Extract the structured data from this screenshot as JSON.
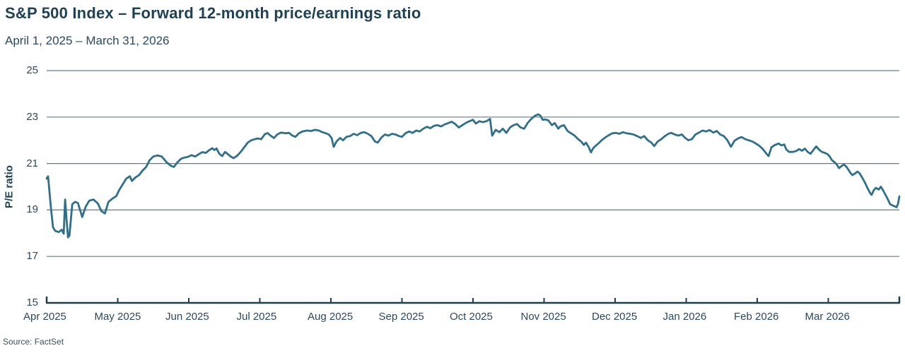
{
  "header": {
    "title": "S&P 500 Index – Forward 12-month price/earnings ratio",
    "subtitle": "April 1, 2025 – March 31, 2026"
  },
  "source": "Source: FactSet",
  "chart_data": {
    "type": "line",
    "title": "S&P 500 Index – Forward 12-month price/earnings ratio",
    "subtitle": "April 1, 2025 – March 31, 2026",
    "xlabel": "",
    "ylabel": "P/E ratio",
    "ylim": [
      15,
      25
    ],
    "yticks": [
      15,
      17,
      19,
      21,
      23,
      25
    ],
    "xticks": [
      "Apr 2025",
      "May 2025",
      "Jun 2025",
      "Jul 2025",
      "Aug 2025",
      "Sep 2025",
      "Oct 2025",
      "Nov 2025",
      "Dec 2025",
      "Jan 2026",
      "Feb 2026",
      "Mar 2026"
    ],
    "x_domain_months": 12,
    "grid": "horizontal",
    "legend": "none",
    "line_color": "#2e6f8e",
    "grid_color": "#5d7c8f",
    "axis_color": "#1e3e54",
    "series": [
      {
        "name": "Forward 12-month P/E ratio",
        "x_unit": "months since Apr 1 2025",
        "points": [
          [
            0.0,
            20.35
          ],
          [
            0.02,
            20.45
          ],
          [
            0.06,
            19.1
          ],
          [
            0.09,
            18.25
          ],
          [
            0.12,
            18.1
          ],
          [
            0.17,
            18.05
          ],
          [
            0.21,
            18.15
          ],
          [
            0.24,
            17.98
          ],
          [
            0.26,
            19.45
          ],
          [
            0.28,
            18.6
          ],
          [
            0.3,
            17.82
          ],
          [
            0.32,
            17.9
          ],
          [
            0.36,
            19.25
          ],
          [
            0.4,
            19.35
          ],
          [
            0.44,
            19.3
          ],
          [
            0.46,
            19.1
          ],
          [
            0.5,
            18.7
          ],
          [
            0.55,
            19.15
          ],
          [
            0.6,
            19.4
          ],
          [
            0.66,
            19.45
          ],
          [
            0.72,
            19.28
          ],
          [
            0.77,
            18.95
          ],
          [
            0.82,
            18.85
          ],
          [
            0.87,
            19.35
          ],
          [
            0.93,
            19.5
          ],
          [
            0.98,
            19.6
          ],
          [
            1.02,
            19.85
          ],
          [
            1.07,
            20.1
          ],
          [
            1.12,
            20.35
          ],
          [
            1.17,
            20.45
          ],
          [
            1.2,
            20.25
          ],
          [
            1.25,
            20.4
          ],
          [
            1.3,
            20.5
          ],
          [
            1.35,
            20.7
          ],
          [
            1.4,
            20.85
          ],
          [
            1.45,
            21.15
          ],
          [
            1.5,
            21.3
          ],
          [
            1.56,
            21.35
          ],
          [
            1.62,
            21.3
          ],
          [
            1.69,
            21.05
          ],
          [
            1.75,
            20.9
          ],
          [
            1.79,
            20.85
          ],
          [
            1.84,
            21.05
          ],
          [
            1.89,
            21.2
          ],
          [
            1.93,
            21.25
          ],
          [
            1.98,
            21.28
          ],
          [
            2.04,
            21.36
          ],
          [
            2.09,
            21.3
          ],
          [
            2.14,
            21.4
          ],
          [
            2.19,
            21.49
          ],
          [
            2.24,
            21.46
          ],
          [
            2.29,
            21.58
          ],
          [
            2.33,
            21.66
          ],
          [
            2.36,
            21.58
          ],
          [
            2.39,
            21.65
          ],
          [
            2.43,
            21.42
          ],
          [
            2.47,
            21.32
          ],
          [
            2.51,
            21.5
          ],
          [
            2.55,
            21.4
          ],
          [
            2.59,
            21.3
          ],
          [
            2.63,
            21.23
          ],
          [
            2.68,
            21.33
          ],
          [
            2.73,
            21.5
          ],
          [
            2.78,
            21.7
          ],
          [
            2.83,
            21.9
          ],
          [
            2.88,
            22.0
          ],
          [
            2.93,
            22.05
          ],
          [
            2.97,
            22.08
          ],
          [
            3.02,
            22.05
          ],
          [
            3.07,
            22.26
          ],
          [
            3.11,
            22.31
          ],
          [
            3.15,
            22.2
          ],
          [
            3.2,
            22.1
          ],
          [
            3.25,
            22.26
          ],
          [
            3.3,
            22.33
          ],
          [
            3.36,
            22.3
          ],
          [
            3.41,
            22.32
          ],
          [
            3.46,
            22.2
          ],
          [
            3.5,
            22.15
          ],
          [
            3.55,
            22.3
          ],
          [
            3.6,
            22.38
          ],
          [
            3.66,
            22.42
          ],
          [
            3.72,
            22.4
          ],
          [
            3.78,
            22.45
          ],
          [
            3.83,
            22.42
          ],
          [
            3.88,
            22.35
          ],
          [
            3.93,
            22.3
          ],
          [
            3.97,
            22.25
          ],
          [
            4.01,
            22.1
          ],
          [
            4.04,
            21.72
          ],
          [
            4.08,
            21.95
          ],
          [
            4.13,
            22.1
          ],
          [
            4.17,
            22.0
          ],
          [
            4.22,
            22.15
          ],
          [
            4.27,
            22.18
          ],
          [
            4.32,
            22.28
          ],
          [
            4.37,
            22.22
          ],
          [
            4.42,
            22.32
          ],
          [
            4.47,
            22.35
          ],
          [
            4.52,
            22.28
          ],
          [
            4.57,
            22.18
          ],
          [
            4.62,
            21.95
          ],
          [
            4.66,
            21.9
          ],
          [
            4.71,
            22.12
          ],
          [
            4.76,
            22.25
          ],
          [
            4.81,
            22.2
          ],
          [
            4.86,
            22.28
          ],
          [
            4.91,
            22.25
          ],
          [
            4.96,
            22.18
          ],
          [
            5.0,
            22.15
          ],
          [
            5.05,
            22.3
          ],
          [
            5.1,
            22.38
          ],
          [
            5.15,
            22.32
          ],
          [
            5.2,
            22.42
          ],
          [
            5.25,
            22.38
          ],
          [
            5.3,
            22.5
          ],
          [
            5.35,
            22.58
          ],
          [
            5.4,
            22.52
          ],
          [
            5.45,
            22.62
          ],
          [
            5.5,
            22.65
          ],
          [
            5.55,
            22.6
          ],
          [
            5.6,
            22.68
          ],
          [
            5.65,
            22.74
          ],
          [
            5.7,
            22.8
          ],
          [
            5.75,
            22.7
          ],
          [
            5.8,
            22.55
          ],
          [
            5.85,
            22.65
          ],
          [
            5.9,
            22.75
          ],
          [
            5.95,
            22.82
          ],
          [
            6.0,
            22.88
          ],
          [
            6.04,
            22.72
          ],
          [
            6.09,
            22.82
          ],
          [
            6.14,
            22.78
          ],
          [
            6.19,
            22.82
          ],
          [
            6.24,
            22.92
          ],
          [
            6.27,
            22.2
          ],
          [
            6.32,
            22.45
          ],
          [
            6.37,
            22.35
          ],
          [
            6.42,
            22.5
          ],
          [
            6.47,
            22.32
          ],
          [
            6.52,
            22.55
          ],
          [
            6.57,
            22.65
          ],
          [
            6.62,
            22.7
          ],
          [
            6.67,
            22.55
          ],
          [
            6.72,
            22.5
          ],
          [
            6.77,
            22.75
          ],
          [
            6.82,
            22.92
          ],
          [
            6.87,
            23.05
          ],
          [
            6.92,
            23.12
          ],
          [
            6.95,
            23.05
          ],
          [
            6.98,
            22.88
          ],
          [
            7.01,
            22.9
          ],
          [
            7.06,
            22.86
          ],
          [
            7.11,
            22.65
          ],
          [
            7.15,
            22.74
          ],
          [
            7.2,
            22.5
          ],
          [
            7.23,
            22.6
          ],
          [
            7.28,
            22.65
          ],
          [
            7.33,
            22.4
          ],
          [
            7.38,
            22.3
          ],
          [
            7.43,
            22.2
          ],
          [
            7.48,
            22.05
          ],
          [
            7.52,
            21.95
          ],
          [
            7.56,
            21.8
          ],
          [
            7.59,
            21.9
          ],
          [
            7.63,
            21.7
          ],
          [
            7.66,
            21.48
          ],
          [
            7.69,
            21.65
          ],
          [
            7.72,
            21.75
          ],
          [
            7.76,
            21.85
          ],
          [
            7.81,
            22.0
          ],
          [
            7.86,
            22.12
          ],
          [
            7.91,
            22.22
          ],
          [
            7.96,
            22.3
          ],
          [
            8.01,
            22.32
          ],
          [
            8.06,
            22.28
          ],
          [
            8.11,
            22.35
          ],
          [
            8.16,
            22.3
          ],
          [
            8.21,
            22.28
          ],
          [
            8.26,
            22.25
          ],
          [
            8.31,
            22.18
          ],
          [
            8.36,
            22.1
          ],
          [
            8.41,
            22.18
          ],
          [
            8.46,
            22.0
          ],
          [
            8.51,
            21.9
          ],
          [
            8.55,
            21.75
          ],
          [
            8.6,
            21.95
          ],
          [
            8.65,
            22.05
          ],
          [
            8.7,
            22.18
          ],
          [
            8.75,
            22.28
          ],
          [
            8.79,
            22.32
          ],
          [
            8.84,
            22.25
          ],
          [
            8.89,
            22.2
          ],
          [
            8.94,
            22.25
          ],
          [
            8.98,
            22.12
          ],
          [
            9.03,
            22.0
          ],
          [
            9.08,
            22.05
          ],
          [
            9.13,
            22.25
          ],
          [
            9.18,
            22.33
          ],
          [
            9.23,
            22.42
          ],
          [
            9.28,
            22.38
          ],
          [
            9.33,
            22.44
          ],
          [
            9.38,
            22.33
          ],
          [
            9.43,
            22.4
          ],
          [
            9.48,
            22.25
          ],
          [
            9.53,
            22.18
          ],
          [
            9.58,
            22.0
          ],
          [
            9.63,
            21.72
          ],
          [
            9.68,
            21.98
          ],
          [
            9.73,
            22.08
          ],
          [
            9.78,
            22.14
          ],
          [
            9.83,
            22.05
          ],
          [
            9.88,
            22.0
          ],
          [
            9.93,
            21.95
          ],
          [
            9.98,
            21.86
          ],
          [
            10.03,
            21.76
          ],
          [
            10.08,
            21.62
          ],
          [
            10.13,
            21.42
          ],
          [
            10.16,
            21.32
          ],
          [
            10.2,
            21.7
          ],
          [
            10.25,
            21.8
          ],
          [
            10.3,
            21.86
          ],
          [
            10.34,
            21.78
          ],
          [
            10.38,
            21.82
          ],
          [
            10.41,
            21.6
          ],
          [
            10.45,
            21.5
          ],
          [
            10.5,
            21.5
          ],
          [
            10.55,
            21.54
          ],
          [
            10.59,
            21.62
          ],
          [
            10.63,
            21.55
          ],
          [
            10.67,
            21.64
          ],
          [
            10.71,
            21.5
          ],
          [
            10.75,
            21.42
          ],
          [
            10.79,
            21.58
          ],
          [
            10.83,
            21.74
          ],
          [
            10.87,
            21.6
          ],
          [
            10.91,
            21.5
          ],
          [
            10.95,
            21.46
          ],
          [
            10.99,
            21.4
          ],
          [
            11.02,
            21.3
          ],
          [
            11.05,
            21.15
          ],
          [
            11.09,
            21.05
          ],
          [
            11.12,
            20.95
          ],
          [
            11.15,
            20.8
          ],
          [
            11.19,
            20.9
          ],
          [
            11.22,
            20.95
          ],
          [
            11.25,
            20.88
          ],
          [
            11.28,
            20.75
          ],
          [
            11.31,
            20.6
          ],
          [
            11.34,
            20.5
          ],
          [
            11.37,
            20.56
          ],
          [
            11.41,
            20.65
          ],
          [
            11.44,
            20.58
          ],
          [
            11.48,
            20.38
          ],
          [
            11.52,
            20.15
          ],
          [
            11.55,
            19.95
          ],
          [
            11.59,
            19.72
          ],
          [
            11.61,
            19.65
          ],
          [
            11.64,
            19.85
          ],
          [
            11.67,
            19.95
          ],
          [
            11.71,
            19.88
          ],
          [
            11.74,
            20.0
          ],
          [
            11.77,
            19.85
          ],
          [
            11.81,
            19.62
          ],
          [
            11.84,
            19.45
          ],
          [
            11.87,
            19.25
          ],
          [
            11.9,
            19.2
          ],
          [
            11.94,
            19.15
          ],
          [
            11.96,
            19.12
          ],
          [
            11.98,
            19.25
          ],
          [
            12.0,
            19.58
          ]
        ]
      }
    ]
  }
}
